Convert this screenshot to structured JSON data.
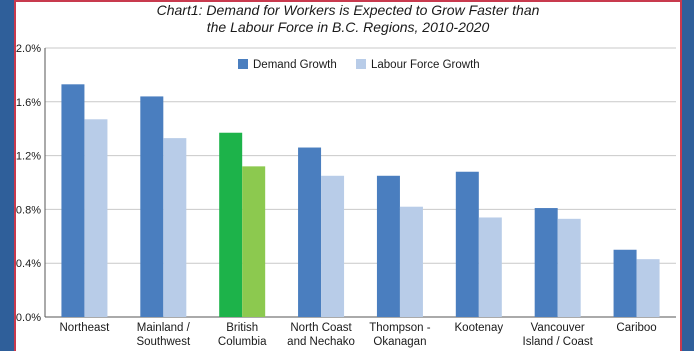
{
  "chart_data": {
    "type": "bar",
    "title_line1": "Chart1: Demand for Workers is Expected to Grow Faster than",
    "title_line2": "the Labour Force in B.C. Regions, 2010-2020",
    "categories": [
      [
        "Northeast"
      ],
      [
        "Mainland /",
        "Southwest"
      ],
      [
        "British",
        "Columbia"
      ],
      [
        "North Coast",
        "and Nechako"
      ],
      [
        "Thompson -",
        "Okanagan"
      ],
      [
        "Kootenay"
      ],
      [
        "Vancouver",
        "Island / Coast"
      ],
      [
        "Cariboo"
      ]
    ],
    "series": [
      {
        "name": "Demand Growth",
        "values": [
          1.73,
          1.64,
          1.37,
          1.26,
          1.05,
          1.08,
          0.81,
          0.5
        ],
        "color": "#4a7ebf"
      },
      {
        "name": "Labour Force Growth",
        "values": [
          1.47,
          1.33,
          1.12,
          1.05,
          0.82,
          0.74,
          0.73,
          0.43
        ],
        "color": "#b8cce8"
      }
    ],
    "highlight": {
      "index": 2,
      "colors": [
        "#1db34a",
        "#8cc94f"
      ]
    },
    "yticks": [
      "0.0%",
      "0.4%",
      "0.8%",
      "1.2%",
      "1.6%",
      "2.0%"
    ],
    "ylim": [
      0,
      2.0
    ],
    "xlabel": "",
    "ylabel": "",
    "legend_placement": "top-center",
    "grid": true
  }
}
